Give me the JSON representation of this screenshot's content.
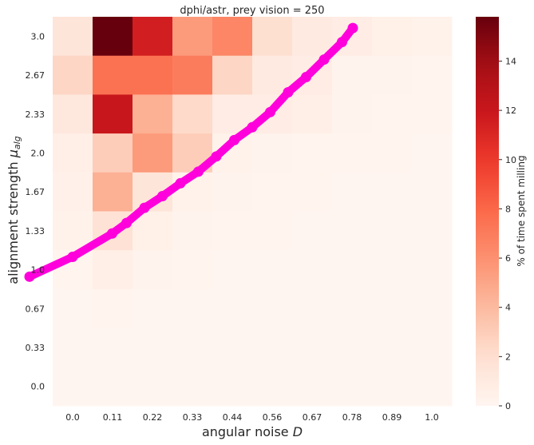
{
  "chart_data": {
    "type": "heatmap",
    "title": "dphi/astr, prey vision = 250",
    "xlabel_main": "angular noise ",
    "xlabel_sym": "D",
    "ylabel_main": "alignment strength ",
    "ylabel_sym": "μ",
    "ylabel_sub": "alg",
    "x_categories": [
      "0.0",
      "0.11",
      "0.22",
      "0.33",
      "0.44",
      "0.56",
      "0.67",
      "0.78",
      "0.89",
      "1.0"
    ],
    "y_categories": [
      "3.0",
      "2.67",
      "2.33",
      "2.0",
      "1.67",
      "1.33",
      "1.0",
      "0.67",
      "0.33",
      "0.0"
    ],
    "values": [
      [
        1.5,
        15.8,
        11.5,
        5.5,
        6.5,
        2.0,
        1.0,
        0.8,
        0.5,
        0.3
      ],
      [
        2.5,
        7.5,
        7.5,
        7.0,
        2.5,
        1.0,
        0.8,
        0.2,
        0.2,
        0.1
      ],
      [
        1.2,
        12.0,
        4.5,
        2.3,
        0.8,
        0.8,
        0.6,
        0.2,
        0.1,
        0.1
      ],
      [
        0.6,
        3.0,
        5.5,
        3.0,
        0.3,
        0.2,
        0.1,
        0.1,
        0.1,
        0.0
      ],
      [
        0.4,
        4.5,
        1.5,
        0.3,
        0.2,
        0.1,
        0.1,
        0.0,
        0.0,
        0.0
      ],
      [
        0.3,
        1.8,
        0.5,
        0.2,
        0.1,
        0.1,
        0.0,
        0.0,
        0.0,
        0.0
      ],
      [
        0.1,
        0.6,
        0.2,
        0.1,
        0.0,
        0.0,
        0.0,
        0.0,
        0.0,
        0.0
      ],
      [
        0.0,
        0.1,
        0.0,
        0.0,
        0.0,
        0.0,
        0.0,
        0.0,
        0.0,
        0.0
      ],
      [
        0.0,
        0.0,
        0.0,
        0.0,
        0.0,
        0.0,
        0.0,
        0.0,
        0.0,
        0.0
      ],
      [
        0.0,
        0.0,
        0.0,
        0.0,
        0.0,
        0.0,
        0.0,
        0.0,
        0.0,
        0.0
      ]
    ],
    "colorbar": {
      "label": "% of time spent milling",
      "min": 0,
      "max": 15.8,
      "ticks": [
        "0",
        "2",
        "4",
        "6",
        "8",
        "10",
        "12",
        "14"
      ],
      "colormap": "Reds"
    },
    "overlay_curve": {
      "color": "#ff00dd",
      "x_range": [
        -0.12,
        0.78
      ],
      "points": [
        [
          -0.12,
          0.94
        ],
        [
          0.0,
          1.11
        ],
        [
          0.11,
          1.31
        ],
        [
          0.15,
          1.4
        ],
        [
          0.2,
          1.53
        ],
        [
          0.25,
          1.63
        ],
        [
          0.3,
          1.74
        ],
        [
          0.35,
          1.84
        ],
        [
          0.4,
          1.97
        ],
        [
          0.45,
          2.11
        ],
        [
          0.5,
          2.22
        ],
        [
          0.55,
          2.35
        ],
        [
          0.6,
          2.52
        ],
        [
          0.65,
          2.65
        ],
        [
          0.7,
          2.8
        ],
        [
          0.75,
          2.95
        ],
        [
          0.78,
          3.07
        ]
      ]
    },
    "grid": false,
    "legend": "none"
  }
}
